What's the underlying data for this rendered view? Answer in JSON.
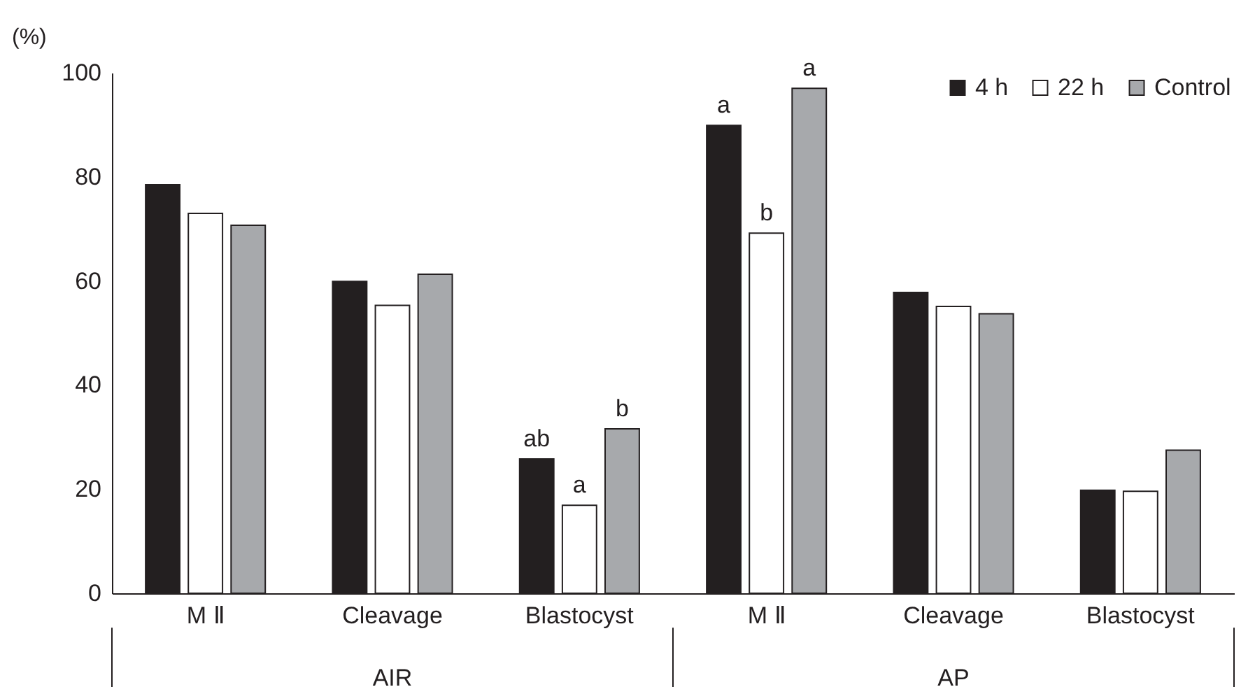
{
  "chart_data": {
    "type": "bar",
    "ylabel": "(%)",
    "categories": [
      "M Ⅱ",
      "Cleavage",
      "Blastocyst",
      "M Ⅱ",
      "Cleavage",
      "Blastocyst"
    ],
    "series": [
      {
        "name": "4 h",
        "color": "#231f20",
        "values": [
          78.5,
          59.9,
          25.8,
          89.9,
          57.8,
          19.8
        ],
        "value_labels": [
          null,
          null,
          "ab",
          "a",
          null,
          null
        ]
      },
      {
        "name": "22 h",
        "color": "#ffffff",
        "values": [
          73.0,
          55.3,
          16.9,
          69.2,
          55.1,
          19.6
        ],
        "value_labels": [
          null,
          null,
          "a",
          "b",
          null,
          null
        ]
      },
      {
        "name": "Control",
        "color": "#a7a9ac",
        "values": [
          70.7,
          61.3,
          31.6,
          97.0,
          53.7,
          27.5
        ],
        "value_labels": [
          null,
          null,
          "b",
          "a",
          null,
          null
        ]
      }
    ],
    "ylim": [
      0,
      100
    ],
    "yticks": [
      0,
      20,
      40,
      60,
      80,
      100
    ],
    "legend": "top right",
    "annotations": [
      "AIR",
      "AP"
    ]
  }
}
